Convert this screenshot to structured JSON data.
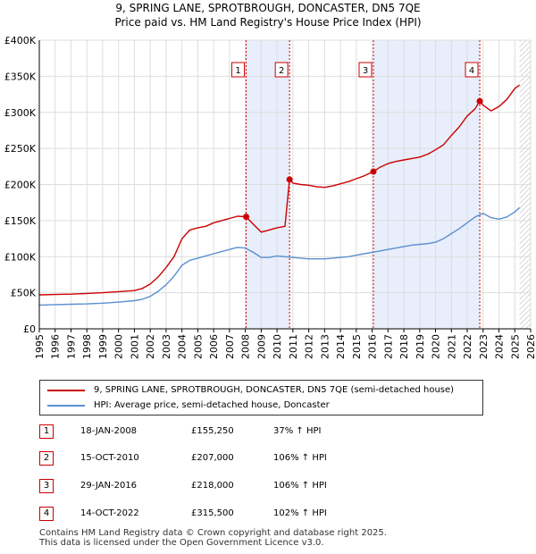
{
  "title_line1": "9, SPRING LANE, SPROTBROUGH, DONCASTER, DN5 7QE",
  "title_line2": "Price paid vs. HM Land Registry's House Price Index (HPI)",
  "legend": {
    "property": "9, SPRING LANE, SPROTBROUGH, DONCASTER, DN5 7QE (semi-detached house)",
    "hpi": "HPI: Average price, semi-detached house, Doncaster"
  },
  "colors": {
    "property": "#cc0000",
    "hpi": "#5b8fd0",
    "shade": "#e8eefb",
    "grid": "#dddddd"
  },
  "sales": [
    {
      "label": "1",
      "date": "18-JAN-2008",
      "price": "£155,250",
      "hpi": "37% ↑ HPI"
    },
    {
      "label": "2",
      "date": "15-OCT-2010",
      "price": "£207,000",
      "hpi": "106% ↑ HPI"
    },
    {
      "label": "3",
      "date": "29-JAN-2016",
      "price": "£218,000",
      "hpi": "106% ↑ HPI"
    },
    {
      "label": "4",
      "date": "14-OCT-2022",
      "price": "£315,500",
      "hpi": "102% ↑ HPI"
    }
  ],
  "footer_line1": "Contains HM Land Registry data © Crown copyright and database right 2025.",
  "footer_line2": "This data is licensed under the Open Government Licence v3.0.",
  "chart_data": {
    "type": "line",
    "title": "9, SPRING LANE, SPROTBROUGH, DONCASTER, DN5 7QE",
    "subtitle": "Price paid vs. HM Land Registry's House Price Index (HPI)",
    "xlabel": "",
    "ylabel": "",
    "xlim": [
      1995,
      2026
    ],
    "ylim": [
      0,
      400000
    ],
    "x_ticks": [
      1995,
      1996,
      1997,
      1998,
      1999,
      2000,
      2001,
      2002,
      2003,
      2004,
      2005,
      2006,
      2007,
      2008,
      2009,
      2010,
      2011,
      2012,
      2013,
      2014,
      2015,
      2016,
      2017,
      2018,
      2019,
      2020,
      2021,
      2022,
      2023,
      2024,
      2025,
      2026
    ],
    "y_ticks": [
      {
        "value": 0,
        "label": "£0"
      },
      {
        "value": 50000,
        "label": "£50K"
      },
      {
        "value": 100000,
        "label": "£100K"
      },
      {
        "value": 150000,
        "label": "£150K"
      },
      {
        "value": 200000,
        "label": "£200K"
      },
      {
        "value": 250000,
        "label": "£250K"
      },
      {
        "value": 300000,
        "label": "£300K"
      },
      {
        "value": 350000,
        "label": "£350K"
      },
      {
        "value": 400000,
        "label": "£400K"
      }
    ],
    "shaded_ranges": [
      [
        2008.05,
        2010.79
      ],
      [
        2016.08,
        2022.79
      ]
    ],
    "future_hatch_start": 2025.3,
    "sale_markers": [
      {
        "label": "1",
        "x": 2008.05,
        "y": 155250
      },
      {
        "label": "2",
        "x": 2010.79,
        "y": 207000
      },
      {
        "label": "3",
        "x": 2016.08,
        "y": 218000
      },
      {
        "label": "4",
        "x": 2022.79,
        "y": 315500
      }
    ],
    "series": [
      {
        "name": "9, SPRING LANE, SPROTBROUGH, DONCASTER, DN5 7QE (semi-detached house)",
        "color": "#cc0000",
        "x": [
          1995.0,
          1996.0,
          1997.0,
          1998.0,
          1999.0,
          2000.0,
          2001.0,
          2001.5,
          2002.0,
          2002.5,
          2003.0,
          2003.5,
          2004.0,
          2004.5,
          2005.0,
          2005.5,
          2006.0,
          2006.5,
          2007.0,
          2007.5,
          2008.05,
          2008.5,
          2009.0,
          2009.5,
          2010.0,
          2010.5,
          2010.79,
          2011.0,
          2011.5,
          2012.0,
          2012.5,
          2013.0,
          2013.5,
          2014.0,
          2014.5,
          2015.0,
          2015.5,
          2016.08,
          2016.5,
          2017.0,
          2017.5,
          2018.0,
          2018.5,
          2019.0,
          2019.5,
          2020.0,
          2020.5,
          2021.0,
          2021.5,
          2022.0,
          2022.5,
          2022.79,
          2023.0,
          2023.5,
          2024.0,
          2024.5,
          2025.0,
          2025.3
        ],
        "values": [
          47000,
          47500,
          48000,
          49000,
          50000,
          51500,
          53000,
          56000,
          62000,
          72000,
          85000,
          100000,
          125000,
          137000,
          140000,
          142000,
          147000,
          150000,
          153000,
          156000,
          155250,
          145000,
          134000,
          137000,
          140000,
          142000,
          207000,
          202000,
          200000,
          199000,
          197000,
          196000,
          198000,
          201000,
          204000,
          208000,
          212000,
          218000,
          224000,
          229000,
          232000,
          234000,
          236000,
          238000,
          242000,
          248000,
          255000,
          268000,
          280000,
          295000,
          305000,
          315500,
          310000,
          302000,
          308000,
          318000,
          333000,
          338000
        ]
      },
      {
        "name": "HPI: Average price, semi-detached house, Doncaster",
        "color": "#5b8fd0",
        "x": [
          1995.0,
          1996.0,
          1997.0,
          1998.0,
          1999.0,
          2000.0,
          2001.0,
          2001.5,
          2002.0,
          2002.5,
          2003.0,
          2003.5,
          2004.0,
          2004.5,
          2005.0,
          2005.5,
          2006.0,
          2006.5,
          2007.0,
          2007.5,
          2008.0,
          2008.5,
          2009.0,
          2009.5,
          2010.0,
          2010.5,
          2011.0,
          2011.5,
          2012.0,
          2012.5,
          2013.0,
          2013.5,
          2014.0,
          2014.5,
          2015.0,
          2015.5,
          2016.0,
          2016.5,
          2017.0,
          2017.5,
          2018.0,
          2018.5,
          2019.0,
          2019.5,
          2020.0,
          2020.5,
          2021.0,
          2021.5,
          2022.0,
          2022.5,
          2023.0,
          2023.5,
          2024.0,
          2024.5,
          2025.0,
          2025.3
        ],
        "values": [
          33000,
          33500,
          34000,
          34500,
          35500,
          37000,
          39000,
          41000,
          45000,
          52000,
          61000,
          73000,
          88000,
          95000,
          98000,
          101000,
          104000,
          107000,
          110000,
          113000,
          112000,
          106000,
          99000,
          99000,
          101000,
          100000,
          99000,
          98000,
          97000,
          97000,
          97000,
          98000,
          99000,
          100000,
          102000,
          104000,
          106000,
          108000,
          110000,
          112000,
          114000,
          116000,
          117000,
          118000,
          120000,
          125000,
          132000,
          139000,
          147000,
          155000,
          160000,
          154000,
          152000,
          155000,
          162000,
          168000
        ]
      }
    ]
  }
}
